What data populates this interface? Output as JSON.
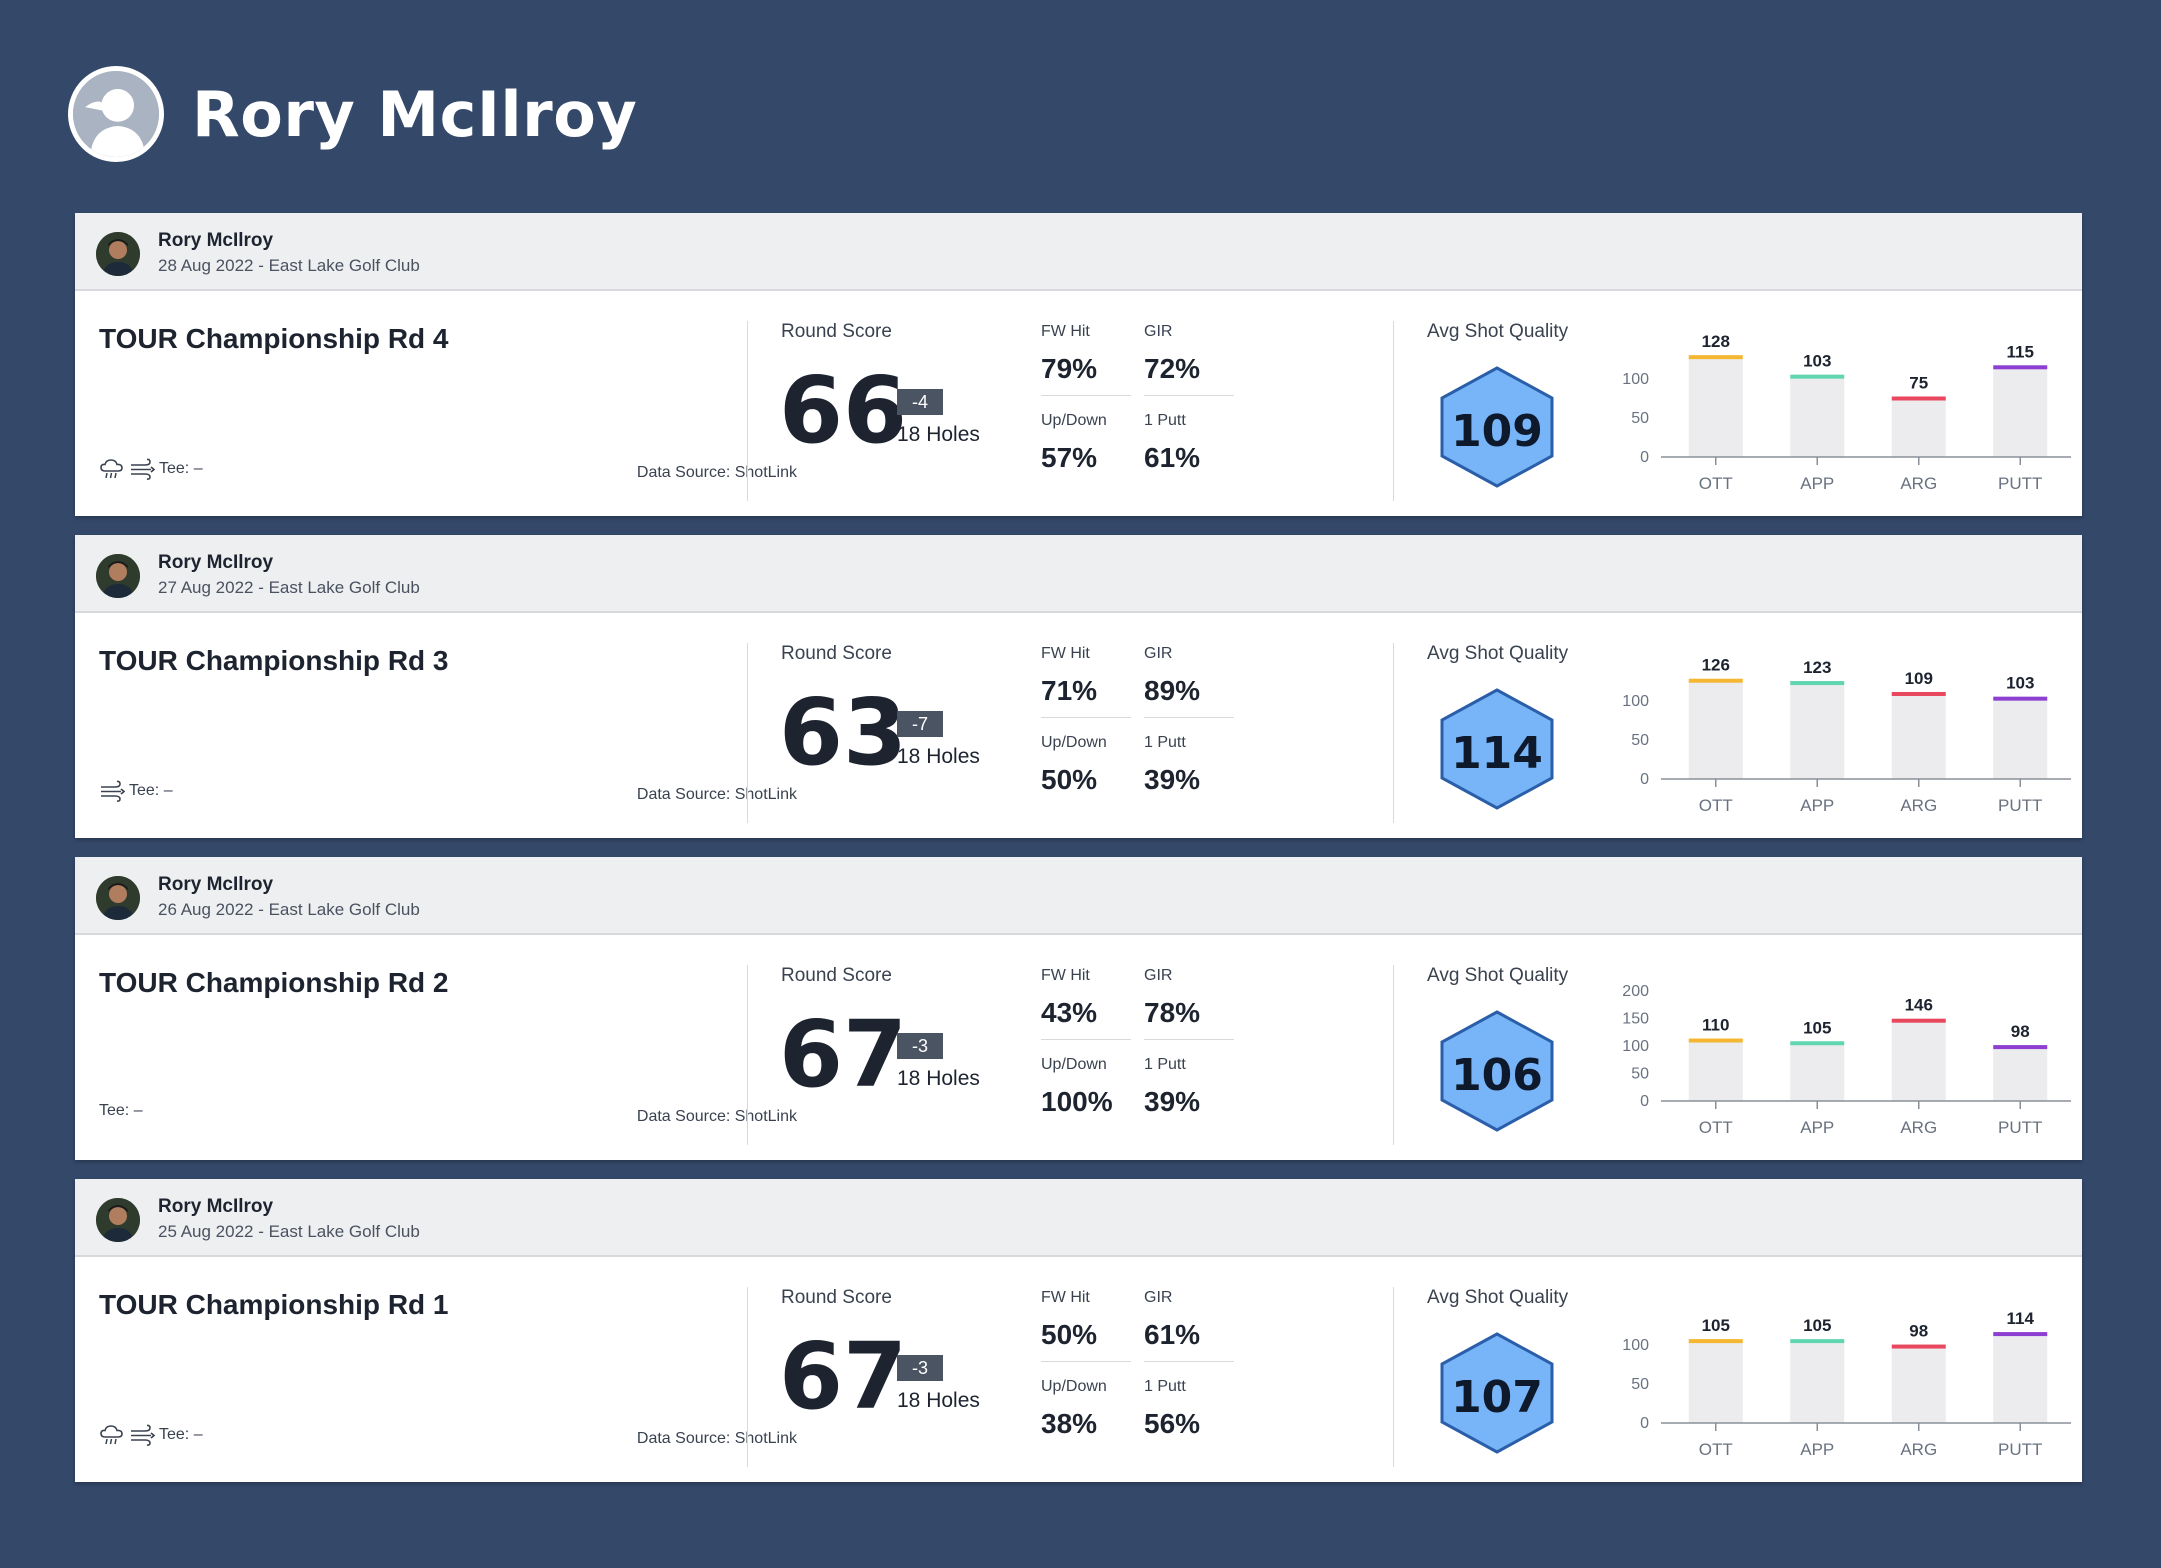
{
  "page": {
    "player_name": "Rory McIlroy"
  },
  "labels": {
    "round_score": "Round Score",
    "fw_hit": "FW Hit",
    "gir": "GIR",
    "up_down": "Up/Down",
    "one_putt": "1 Putt",
    "avg_shot_quality": "Avg Shot Quality",
    "data_source": "Data Source: ShotLink",
    "holes": "18 Holes"
  },
  "rounds": [
    {
      "player": "Rory McIlroy",
      "date_course": "28 Aug 2022 - East Lake Golf Club",
      "title": "TOUR Championship Rd 4",
      "tee": "Tee: –",
      "score": "66",
      "to_par": "-4",
      "fw_hit": "79%",
      "gir": "72%",
      "up_down": "57%",
      "one_putt": "61%",
      "asq": "109",
      "icons": [
        "rain-cloud-icon",
        "wind-icon"
      ]
    },
    {
      "player": "Rory McIlroy",
      "date_course": "27 Aug 2022 - East Lake Golf Club",
      "title": "TOUR Championship Rd 3",
      "tee": "Tee: –",
      "score": "63",
      "to_par": "-7",
      "fw_hit": "71%",
      "gir": "89%",
      "up_down": "50%",
      "one_putt": "39%",
      "asq": "114",
      "icons": [
        "wind-icon"
      ]
    },
    {
      "player": "Rory McIlroy",
      "date_course": "26 Aug 2022 - East Lake Golf Club",
      "title": "TOUR Championship Rd 2",
      "tee": "Tee: –",
      "score": "67",
      "to_par": "-3",
      "fw_hit": "43%",
      "gir": "78%",
      "up_down": "100%",
      "one_putt": "39%",
      "asq": "106",
      "icons": []
    },
    {
      "player": "Rory McIlroy",
      "date_course": "25 Aug 2022 - East Lake Golf Club",
      "title": "TOUR Championship Rd 1",
      "tee": "Tee: –",
      "score": "67",
      "to_par": "-3",
      "fw_hit": "50%",
      "gir": "61%",
      "up_down": "38%",
      "one_putt": "56%",
      "asq": "107",
      "icons": [
        "rain-cloud-icon",
        "wind-icon"
      ]
    }
  ],
  "colors": {
    "background": "#34486a",
    "hex_fill": "#78b4f8",
    "hex_stroke": "#2a5ea8",
    "OTT": "#f5b731",
    "APP": "#5fd6b0",
    "ARG": "#e8475e",
    "PUTT": "#8c3fd0"
  },
  "chart_data": [
    {
      "type": "bar",
      "categories": [
        "OTT",
        "APP",
        "ARG",
        "PUTT"
      ],
      "values": [
        128,
        103,
        75,
        115
      ],
      "yticks": [
        0,
        50,
        100
      ],
      "ylim": [
        0,
        130
      ]
    },
    {
      "type": "bar",
      "categories": [
        "OTT",
        "APP",
        "ARG",
        "PUTT"
      ],
      "values": [
        126,
        123,
        109,
        103
      ],
      "yticks": [
        0,
        50,
        100
      ],
      "ylim": [
        0,
        130
      ]
    },
    {
      "type": "bar",
      "categories": [
        "OTT",
        "APP",
        "ARG",
        "PUTT"
      ],
      "values": [
        110,
        105,
        146,
        98
      ],
      "yticks": [
        0,
        50,
        100,
        150,
        200
      ],
      "ylim": [
        0,
        200
      ]
    },
    {
      "type": "bar",
      "categories": [
        "OTT",
        "APP",
        "ARG",
        "PUTT"
      ],
      "values": [
        105,
        105,
        98,
        114
      ],
      "yticks": [
        0,
        50,
        100
      ],
      "ylim": [
        0,
        130
      ]
    }
  ]
}
